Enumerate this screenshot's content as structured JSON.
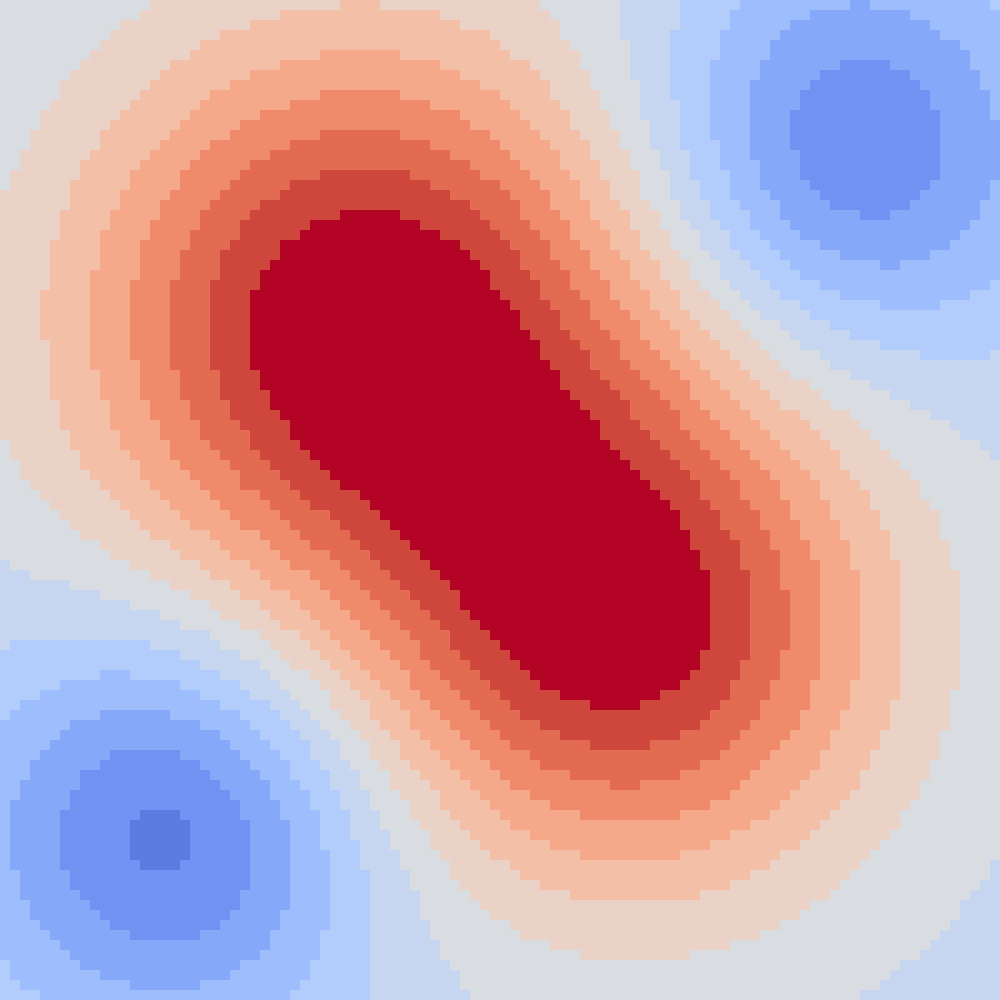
{
  "chart_data": {
    "type": "heatmap",
    "title": "",
    "xlabel": "",
    "ylabel": "",
    "colormap": "coolwarm",
    "levels": 16,
    "grid": false,
    "legend": "none",
    "palette": [
      "#3b4cc0",
      "#4a63d3",
      "#5b7be0",
      "#6f92f3",
      "#86a8f9",
      "#9dbdfd",
      "#b2ccfb",
      "#c6d6f1",
      "#d9dce1",
      "#ead3c6",
      "#f3c0a7",
      "#f5a88a",
      "#ef8b6b",
      "#e26b52",
      "#cf473c",
      "#b40426"
    ],
    "sources": [
      {
        "x": 0.36,
        "y": 0.32,
        "amplitude": 1.0,
        "spread": 0.2
      },
      {
        "x": 0.63,
        "y": 0.63,
        "amplitude": 0.9,
        "spread": 0.18
      },
      {
        "x": 0.85,
        "y": 0.15,
        "amplitude": -0.55,
        "spread": 0.14
      },
      {
        "x": 0.17,
        "y": 0.83,
        "amplitude": -0.6,
        "spread": 0.14
      }
    ],
    "value_range": [
      -0.9,
      1.0
    ]
  }
}
